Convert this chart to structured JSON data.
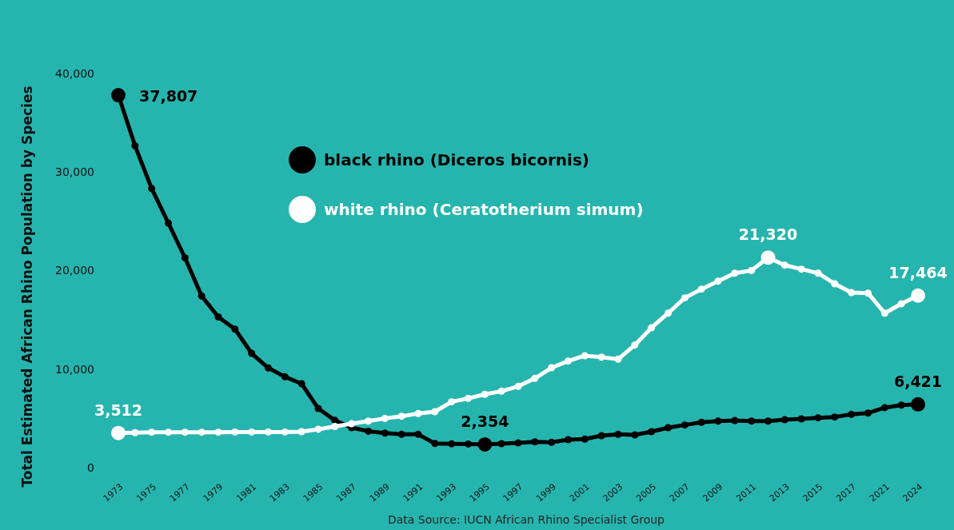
{
  "chart_data": {
    "type": "line",
    "ylabel": "Total Estimated African Rhino Population by Species",
    "categories": [
      "1973",
      null,
      "1975",
      null,
      "1977",
      null,
      "1979",
      null,
      "1981",
      null,
      "1983",
      null,
      "1985",
      null,
      "1987",
      null,
      "1989",
      null,
      "1991",
      null,
      "1993",
      null,
      "1995",
      null,
      "1997",
      null,
      "1999",
      null,
      "2001",
      null,
      "2003",
      null,
      "2005",
      null,
      "2007",
      null,
      "2009",
      null,
      "2011",
      null,
      "2013",
      null,
      "2015",
      null,
      "2017",
      null,
      "2021",
      null,
      "2024"
    ],
    "series": [
      {
        "name": "black rhino (Diceros bicornis)",
        "color": "#000000",
        "values": [
          37807,
          32670,
          28330,
          24830,
          21300,
          17420,
          15290,
          14060,
          11600,
          10120,
          9220,
          8520,
          6000,
          4800,
          4060,
          3700,
          3510,
          3380,
          3380,
          2450,
          2420,
          2400,
          2354,
          2430,
          2510,
          2620,
          2570,
          2840,
          2900,
          3250,
          3380,
          3330,
          3650,
          4060,
          4330,
          4600,
          4730,
          4790,
          4730,
          4730,
          4870,
          4950,
          5060,
          5140,
          5410,
          5540,
          6090,
          6350,
          6421
        ],
        "value_labels": [
          "37,807",
          null,
          null,
          null,
          null,
          null,
          null,
          null,
          null,
          null,
          null,
          null,
          null,
          null,
          null,
          null,
          null,
          null,
          null,
          null,
          null,
          null,
          "2,354",
          null,
          null,
          null,
          null,
          null,
          null,
          null,
          null,
          null,
          null,
          null,
          null,
          null,
          null,
          null,
          null,
          null,
          null,
          null,
          null,
          null,
          null,
          null,
          null,
          null,
          "6,421"
        ]
      },
      {
        "name": "white rhino (Ceratotherium simum)",
        "color": "#ffffff",
        "values": [
          3512,
          3550,
          3600,
          3600,
          3600,
          3600,
          3600,
          3620,
          3620,
          3620,
          3620,
          3650,
          3900,
          4180,
          4460,
          4730,
          5000,
          5220,
          5490,
          5680,
          6680,
          7030,
          7440,
          7760,
          8250,
          9060,
          10140,
          10820,
          11360,
          11220,
          11010,
          12440,
          14200,
          15680,
          17230,
          18120,
          18930,
          19740,
          20010,
          21320,
          20550,
          20150,
          19740,
          18660,
          17770,
          17710,
          15680,
          16630,
          17464
        ],
        "value_labels": [
          "3,512",
          null,
          null,
          null,
          null,
          null,
          null,
          null,
          null,
          null,
          null,
          null,
          null,
          null,
          null,
          null,
          null,
          null,
          null,
          null,
          null,
          null,
          null,
          null,
          null,
          null,
          null,
          null,
          null,
          null,
          null,
          null,
          null,
          null,
          null,
          null,
          null,
          null,
          null,
          "21,320",
          null,
          null,
          null,
          null,
          null,
          null,
          null,
          null,
          "17,464"
        ]
      }
    ],
    "ylim": [
      0,
      40000
    ],
    "yticks": [
      {
        "value": 0,
        "label": "0"
      },
      {
        "value": 10000,
        "label": "10,000"
      },
      {
        "value": 20000,
        "label": "20,000"
      },
      {
        "value": 30000,
        "label": "30,000"
      },
      {
        "value": 40000,
        "label": "40,000"
      }
    ],
    "legend": "top",
    "marker": "circle",
    "line_style": "solid",
    "annotations": [
      "Data Source: IUCN African Rhino Specialist Group"
    ]
  }
}
